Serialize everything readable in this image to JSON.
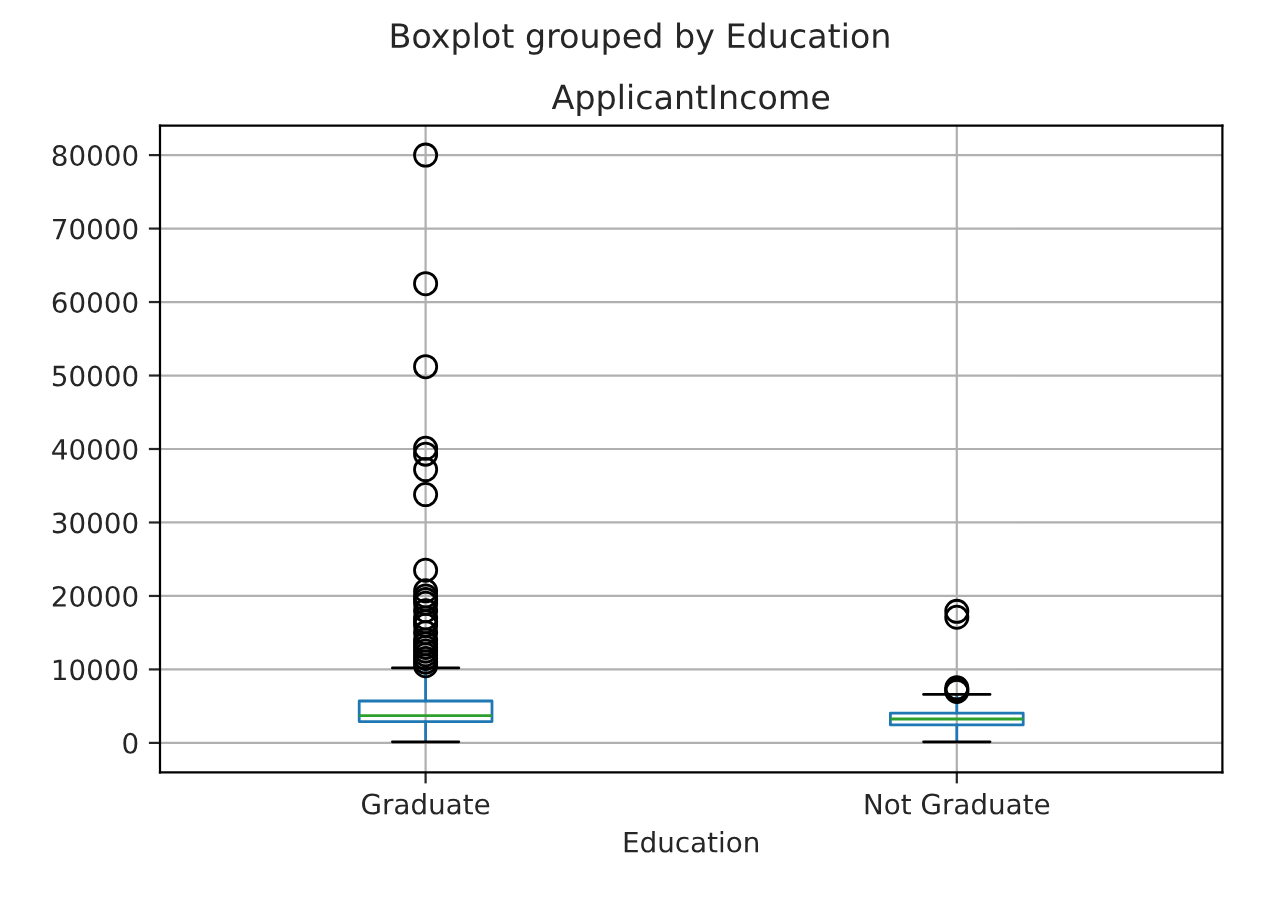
{
  "chart_data": {
    "type": "box",
    "title": "Boxplot grouped by Education",
    "subtitle": "ApplicantIncome",
    "xlabel": "Education",
    "categories": [
      "Graduate",
      "Not Graduate"
    ],
    "boxes": [
      {
        "low": 150,
        "q1": 2900,
        "median": 3700,
        "q3": 5700,
        "high": 10200,
        "outliers": [
          10500,
          11000,
          11500,
          12000,
          12500,
          13000,
          13500,
          14000,
          15000,
          16000,
          16500,
          17000,
          18000,
          19000,
          19500,
          20000,
          20700,
          23500,
          33800,
          37200,
          39300,
          40100,
          51200,
          62500,
          80000
        ]
      },
      {
        "low": 150,
        "q1": 2450,
        "median": 3250,
        "q3": 4050,
        "high": 6600,
        "outliers": [
          7000,
          7200,
          7500,
          17100,
          17900
        ]
      }
    ],
    "color": "#1f77b4",
    "marker": "circle",
    "ylim": [
      -4000,
      84000
    ],
    "yticks": [
      0,
      10000,
      20000,
      30000,
      40000,
      50000,
      60000,
      70000,
      80000
    ],
    "grid": true
  }
}
